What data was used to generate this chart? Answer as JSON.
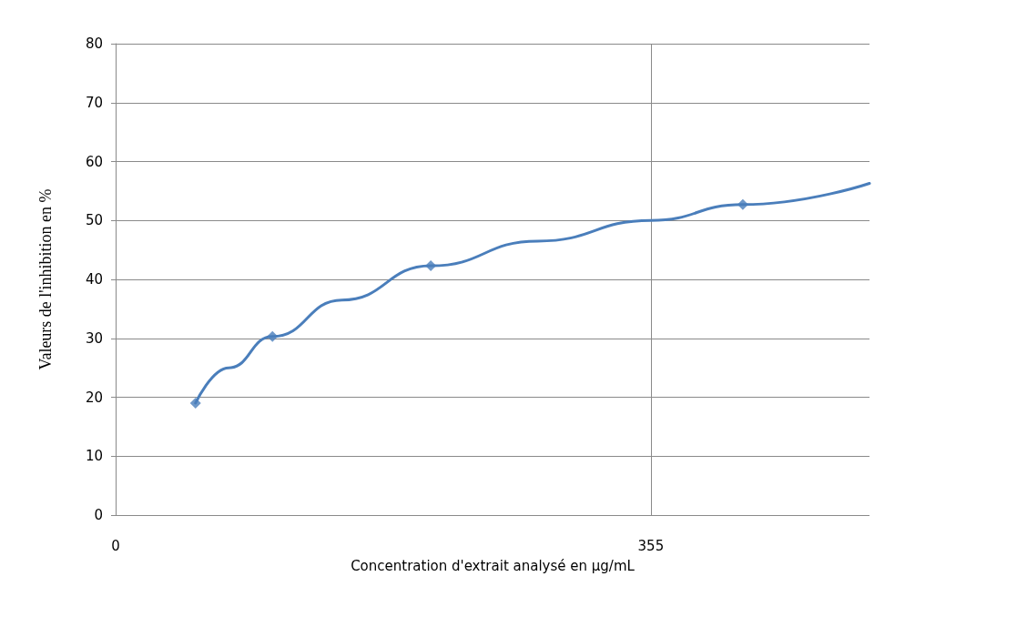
{
  "chart_data": {
    "type": "scatter",
    "xlabel": "Concentration d'extrait analysé en µg/mL",
    "ylabel": "Valeurs de l'inhibition en %",
    "xlim": [
      0,
      500
    ],
    "xticks": [
      0,
      355
    ],
    "ylim": [
      0,
      80
    ],
    "yticks": [
      0,
      10,
      20,
      30,
      40,
      50,
      60,
      70,
      80
    ],
    "grid": true,
    "marker": "diamond",
    "series": [
      {
        "color": "#4a7ebb",
        "x": [
          53,
          104,
          209,
          416
        ],
        "values": [
          19,
          30.3,
          42.3,
          52.7
        ]
      },
      {
        "type": "line",
        "color": "#4a7ebb",
        "marker": "none",
        "line_style": "solid",
        "x": [
          53,
          75,
          104,
          150,
          209,
          280,
          355,
          416,
          500
        ],
        "values": [
          19,
          25,
          30.3,
          36.5,
          42.3,
          46.5,
          50,
          52.7,
          56.3
        ]
      }
    ]
  }
}
